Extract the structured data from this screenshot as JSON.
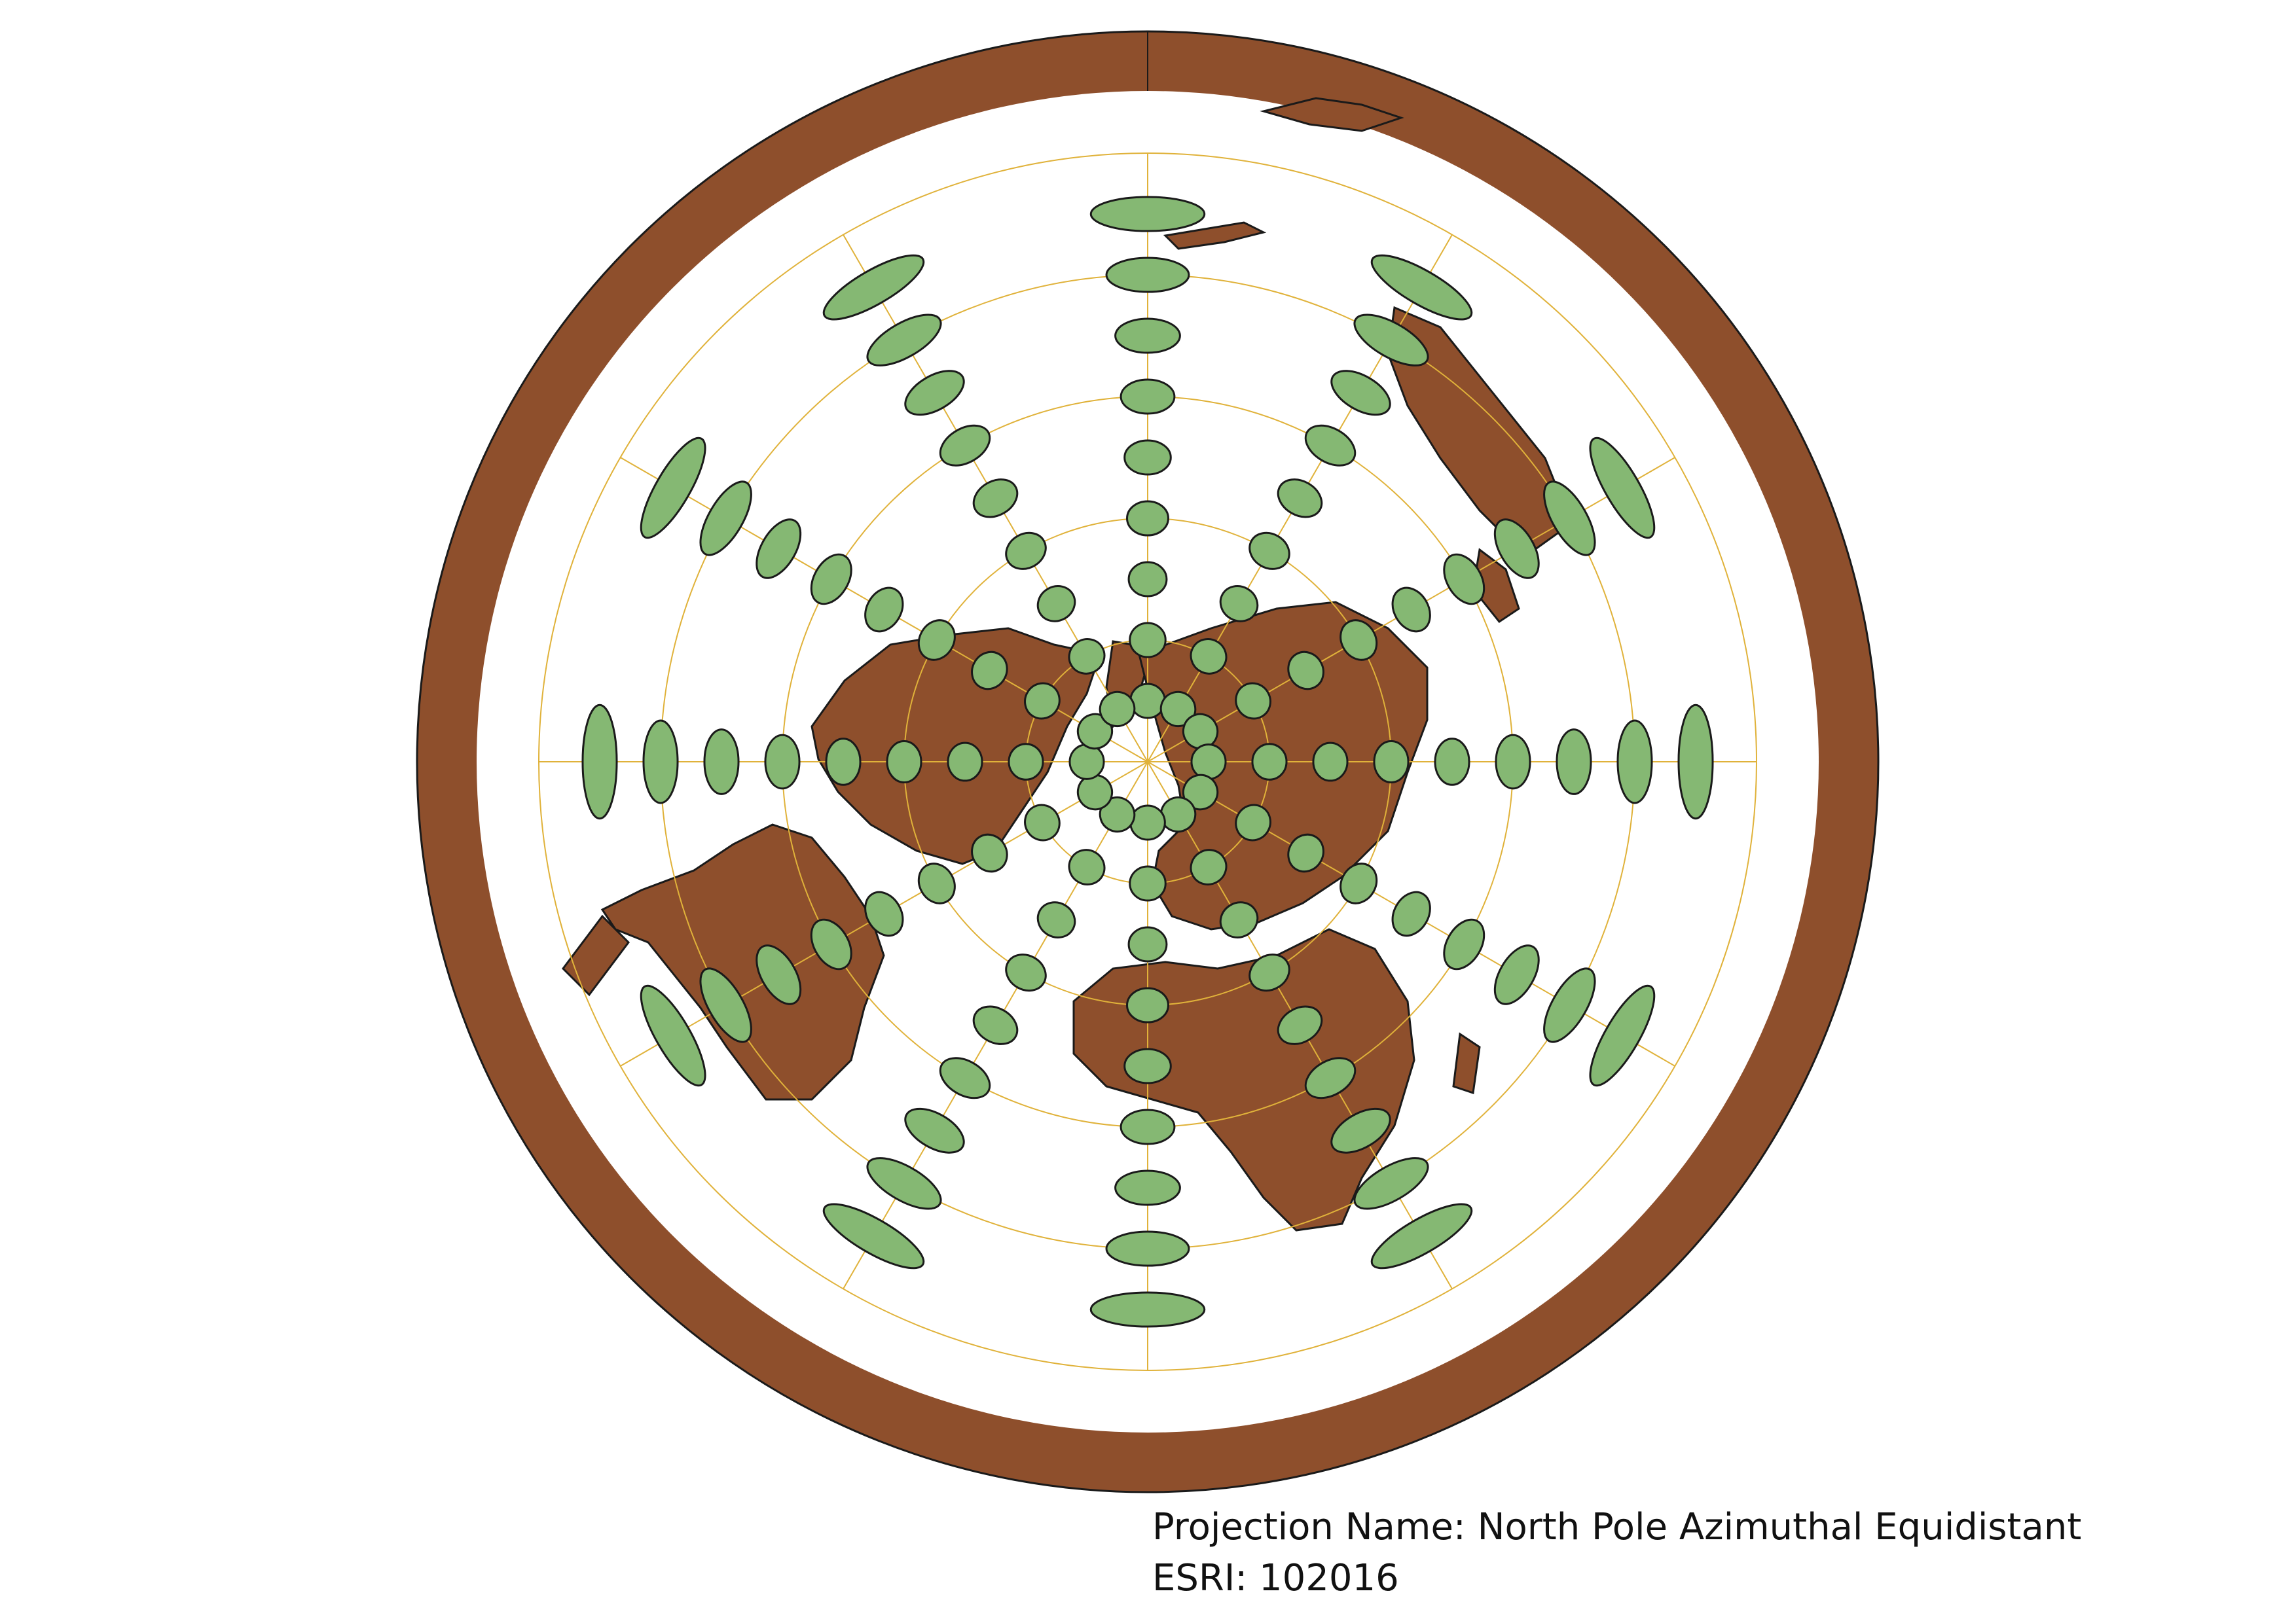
{
  "map": {
    "projection_name_label": "Projection Name: North Pole Azimuthal Equidistant",
    "esri_label": "ESRI: 102016",
    "colors": {
      "background": "#ffffff",
      "land": "#8e4f2c",
      "outline": "#1a1a1a",
      "graticule": "#e0b23a",
      "indicatrix": "#85b873"
    },
    "graticule": {
      "meridian_step_deg": 30,
      "parallels_deg": [
        60,
        30,
        0,
        -30,
        -60
      ]
    },
    "tissot_indicatrix": {
      "latitudes_deg": [
        75,
        60,
        45,
        30,
        15,
        0,
        -15,
        -30,
        -45
      ],
      "longitude_step_deg": 30,
      "fill": "#85b873"
    }
  }
}
